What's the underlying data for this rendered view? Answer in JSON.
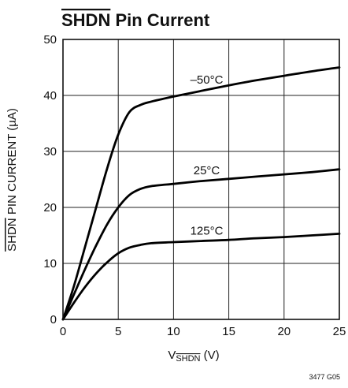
{
  "title": {
    "overlined": "SHDN",
    "rest": " Pin Current"
  },
  "figure_id": "3477 G05",
  "chart_data": {
    "type": "line",
    "title": "SHDN Pin Current",
    "xlabel": {
      "prefix": "V",
      "subscript": "SHDN",
      "suffix": " (V)"
    },
    "ylabel": {
      "overlined": "SHDN",
      "rest": " PIN CURRENT (µA)"
    },
    "xlim": [
      0,
      25
    ],
    "ylim": [
      0,
      50
    ],
    "x_ticks": [
      0,
      5,
      10,
      15,
      20,
      25
    ],
    "y_ticks": [
      0,
      10,
      20,
      30,
      40,
      50
    ],
    "grid": true,
    "series": [
      {
        "name": "–50°C",
        "points": [
          [
            0,
            0
          ],
          [
            1,
            6
          ],
          [
            2,
            13
          ],
          [
            3,
            20
          ],
          [
            4,
            27
          ],
          [
            5,
            33
          ],
          [
            6,
            37
          ],
          [
            7,
            38.3
          ],
          [
            8,
            38.9
          ],
          [
            10,
            39.8
          ],
          [
            12.5,
            40.8
          ],
          [
            15,
            41.8
          ],
          [
            17.5,
            42.7
          ],
          [
            20,
            43.5
          ],
          [
            22.5,
            44.3
          ],
          [
            25,
            45
          ]
        ]
      },
      {
        "name": "25°C",
        "points": [
          [
            0,
            0
          ],
          [
            1,
            4.5
          ],
          [
            2,
            9
          ],
          [
            3,
            13.2
          ],
          [
            4,
            17
          ],
          [
            5,
            20
          ],
          [
            6,
            22.2
          ],
          [
            7,
            23.3
          ],
          [
            8,
            23.8
          ],
          [
            10,
            24.2
          ],
          [
            12.5,
            24.7
          ],
          [
            15,
            25.1
          ],
          [
            17.5,
            25.5
          ],
          [
            20,
            25.9
          ],
          [
            22.5,
            26.3
          ],
          [
            25,
            26.8
          ]
        ]
      },
      {
        "name": "125°C",
        "points": [
          [
            0,
            0
          ],
          [
            1,
            3
          ],
          [
            2,
            5.8
          ],
          [
            3,
            8.2
          ],
          [
            4,
            10.2
          ],
          [
            5,
            11.8
          ],
          [
            6,
            12.8
          ],
          [
            7,
            13.3
          ],
          [
            8,
            13.6
          ],
          [
            10,
            13.8
          ],
          [
            12.5,
            14
          ],
          [
            15,
            14.2
          ],
          [
            17.5,
            14.5
          ],
          [
            20,
            14.7
          ],
          [
            22.5,
            15
          ],
          [
            25,
            15.3
          ]
        ]
      }
    ]
  }
}
